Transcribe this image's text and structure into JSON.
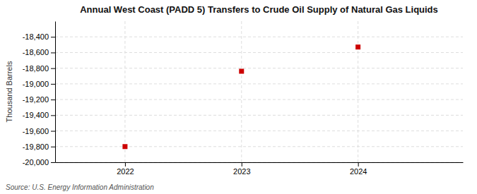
{
  "chart_data": {
    "type": "scatter",
    "title": "Annual West Coast (PADD 5) Transfers to Crude Oil Supply of Natural Gas Liquids",
    "ylabel": "Thousand Barrels",
    "source": "Source: U.S. Energy Information Administration",
    "x": [
      2022,
      2023,
      2024
    ],
    "values": [
      -19800,
      -18839,
      -18530
    ],
    "color": "#cc0000",
    "marker": "square",
    "xlim": [
      2021.4,
      2024.9
    ],
    "xticks": [
      2022,
      2023,
      2024
    ],
    "ylim": [
      -20000,
      -18200
    ],
    "yticks": [
      {
        "value": -20000,
        "label": "-20,000"
      },
      {
        "value": -19800,
        "label": "-19,800"
      },
      {
        "value": -19600,
        "label": "-19,600"
      },
      {
        "value": -19400,
        "label": "-19,400"
      },
      {
        "value": -19200,
        "label": "-19,200"
      },
      {
        "value": -19000,
        "label": "-19,000"
      },
      {
        "value": -18800,
        "label": "-18,800"
      },
      {
        "value": -18600,
        "label": "-18,600"
      },
      {
        "value": -18400,
        "label": "-18,400"
      }
    ],
    "grid": true
  }
}
